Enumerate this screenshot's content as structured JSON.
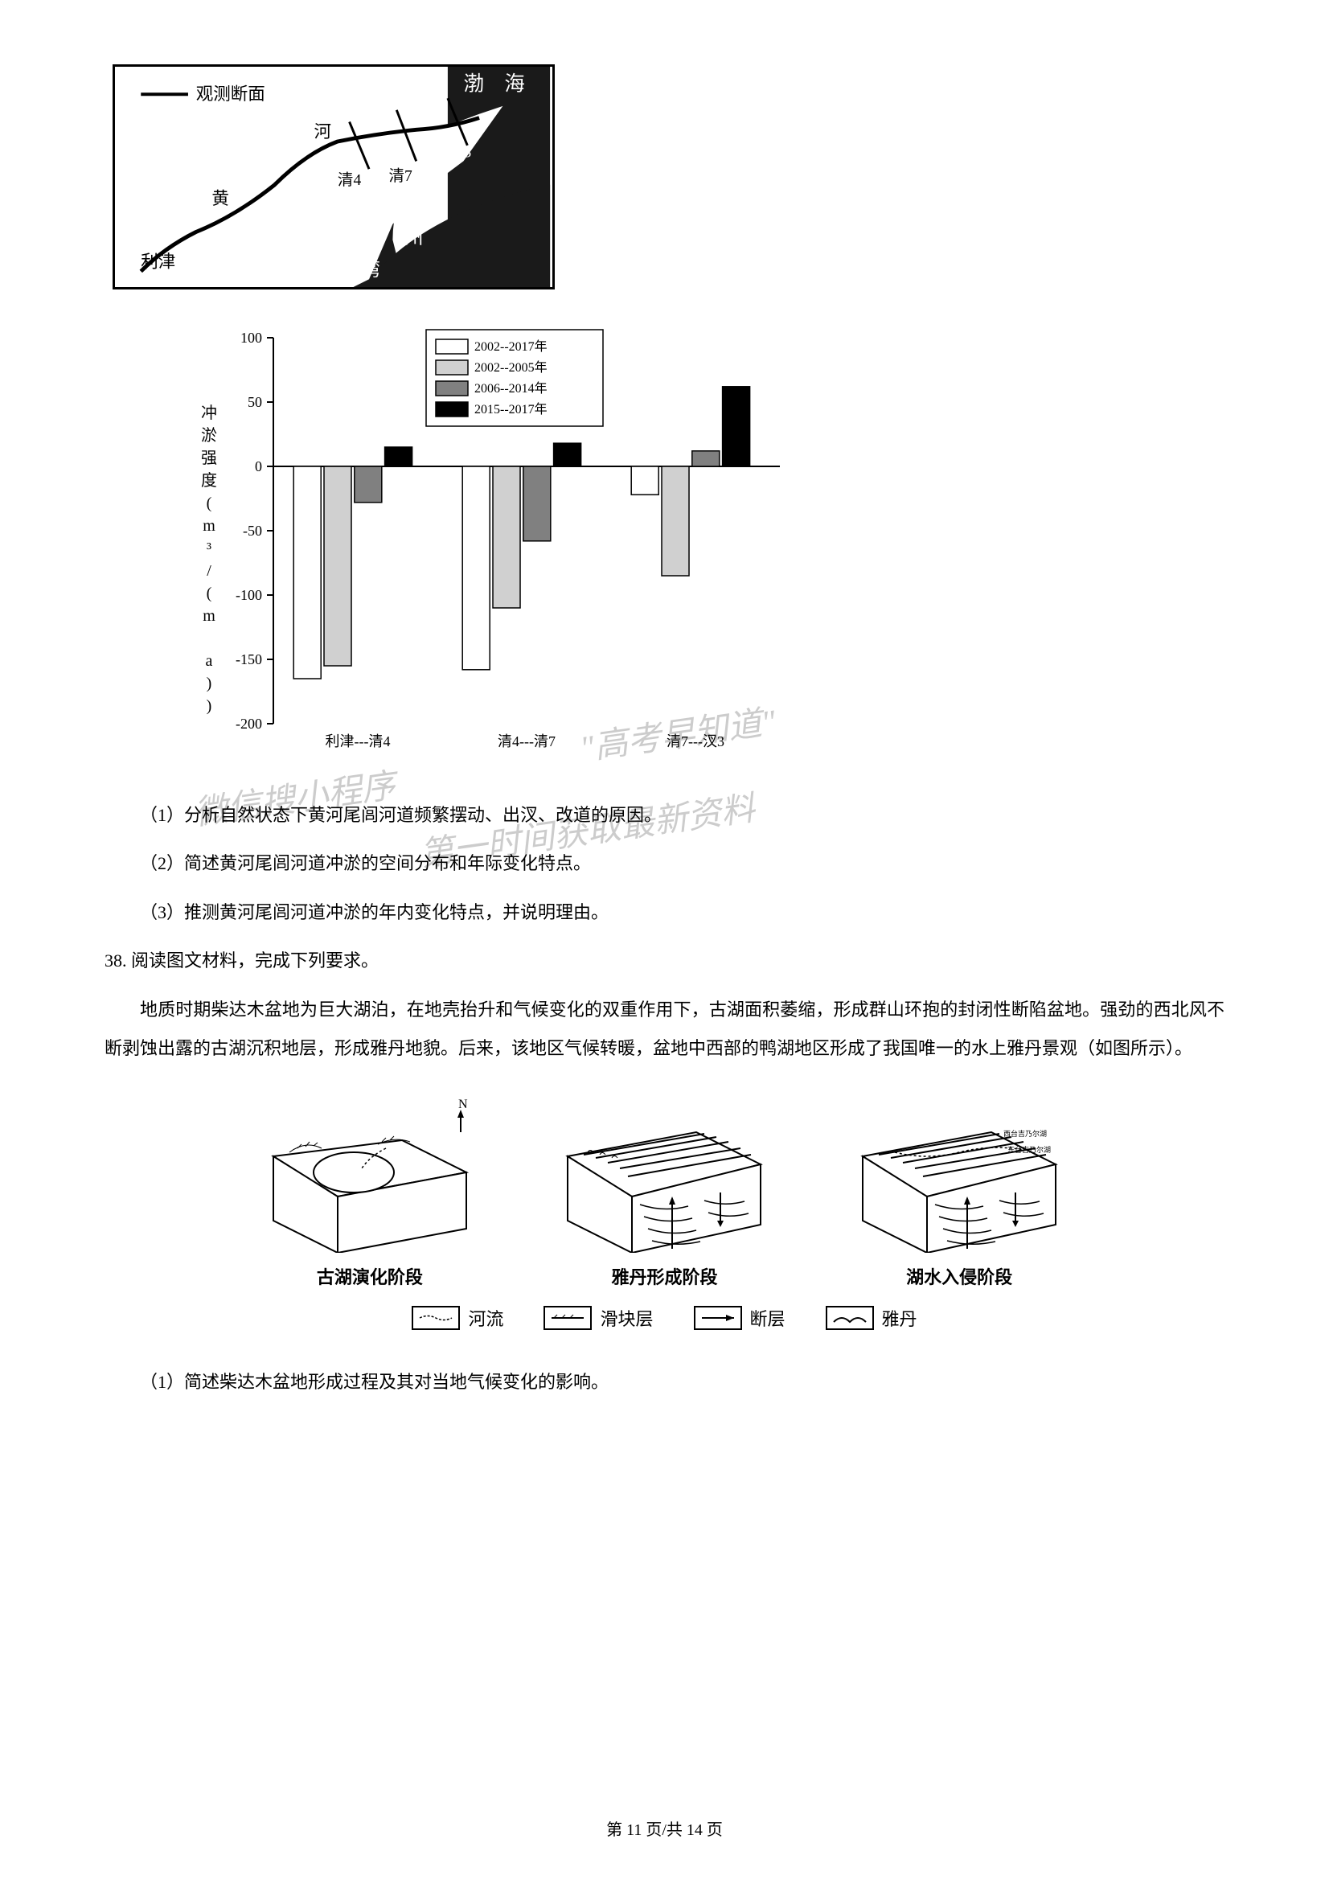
{
  "map": {
    "legend_label": "观测断面",
    "labels": {
      "bohai": "渤　海",
      "lijin": "利津",
      "huang": "黄",
      "he": "河",
      "qing4": "清4",
      "qing7": "清7",
      "han3": "汊3",
      "lai": "莱",
      "zhou": "州",
      "wan": "湾"
    },
    "colors": {
      "sea": "#1a1a1a",
      "land": "#ffffff",
      "river": "#000000",
      "border": "#000000"
    }
  },
  "chart": {
    "type": "bar",
    "ylabel": "冲淤强度(m³/(m a))",
    "ylim": [
      -200,
      100
    ],
    "ytick_step": 50,
    "yticks": [
      -200,
      -150,
      -100,
      -50,
      0,
      50,
      100
    ],
    "categories": [
      "利津---清4",
      "清4---清7",
      "清7---汊3"
    ],
    "series": [
      {
        "label": "2002--2017年",
        "color": "#ffffff",
        "border": "#000000",
        "values": [
          -165,
          -158,
          -22
        ]
      },
      {
        "label": "2002--2005年",
        "color": "#d0d0d0",
        "border": "#000000",
        "values": [
          -155,
          -110,
          -85
        ]
      },
      {
        "label": "2006--2014年",
        "color": "#808080",
        "border": "#000000",
        "values": [
          -28,
          -58,
          12
        ]
      },
      {
        "label": "2015--2017年",
        "color": "#000000",
        "border": "#000000",
        "values": [
          15,
          18,
          62
        ]
      }
    ],
    "bar_width": 0.18,
    "background_color": "#ffffff",
    "axis_color": "#000000",
    "label_fontsize": 18
  },
  "questions": {
    "q1": "（1）分析自然状态下黄河尾闾河道频繁摆动、出汊、改道的原因。",
    "q2": "（2）简述黄河尾闾河道冲淤的空间分布和年际变化特点。",
    "q3": "（3）推测黄河尾闾河道冲淤的年内变化特点，并说明理由。",
    "q38": "38. 阅读图文材料，完成下列要求。",
    "q38_para": "地质时期柴达木盆地为巨大湖泊，在地壳抬升和气候变化的双重作用下，古湖面积萎缩，形成群山环抱的封闭性断陷盆地。强劲的西北风不断剥蚀出露的古湖沉积地层，形成雅丹地貌。后来，该地区气候转暖，盆地中西部的鸭湖地区形成了我国唯一的水上雅丹景观（如图所示）。",
    "q38_1": "（1）简述柴达木盆地形成过程及其对当地气候变化的影响。"
  },
  "diagrams": {
    "stage1": "古湖演化阶段",
    "stage2": "雅丹形成阶段",
    "stage3": "湖水入侵阶段",
    "compass": "N",
    "legend": {
      "river": "河流",
      "slide": "滑块层",
      "fault": "断层",
      "yadan": "雅丹"
    }
  },
  "footer": {
    "text": "第 11 页/共 14 页"
  },
  "watermarks": {
    "w1": "\"高考早知道\"",
    "w2": "微信搜小程序",
    "w3": "第一时间获取最新资料"
  }
}
